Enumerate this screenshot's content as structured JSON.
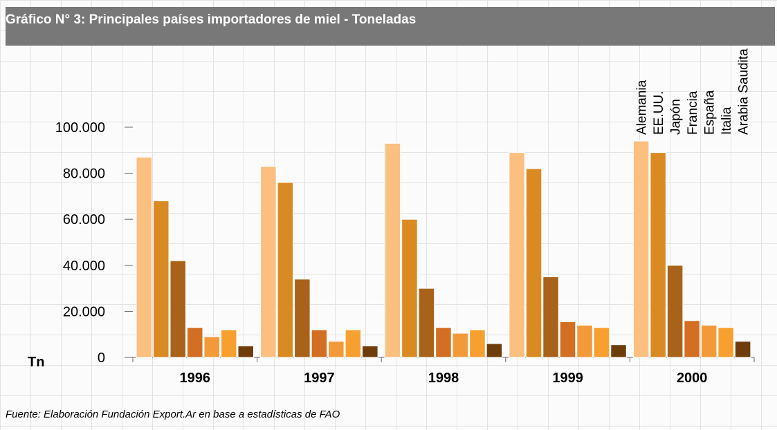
{
  "chart_data": {
    "type": "bar",
    "title": "Gráfico N° 3: Principales países importadores de miel - Toneladas",
    "y_label": "Tn",
    "source": "Fuente: Elaboración Fundación Export.Ar en base a estadísticas de FAO",
    "categories": [
      "1996",
      "1997",
      "1998",
      "1999",
      "2000"
    ],
    "series": [
      {
        "name": "Alemania",
        "color": "#fbbf80",
        "values": [
          87000,
          83000,
          93000,
          89000,
          94000
        ]
      },
      {
        "name": "EE.UU.",
        "color": "#d98a22",
        "values": [
          68000,
          76000,
          60000,
          82000,
          89000
        ]
      },
      {
        "name": "Japón",
        "color": "#a8621a",
        "values": [
          42000,
          34000,
          30000,
          35000,
          40000
        ]
      },
      {
        "name": "Francia",
        "color": "#d26f22",
        "values": [
          13000,
          12000,
          13000,
          15500,
          16000
        ]
      },
      {
        "name": "España",
        "color": "#f29a3a",
        "values": [
          9000,
          7000,
          10500,
          14000,
          14000
        ]
      },
      {
        "name": "Italia",
        "color": "#f7a030",
        "values": [
          12000,
          12000,
          12000,
          13000,
          13000
        ]
      },
      {
        "name": "Arabia Saudita",
        "color": "#6f3d0c",
        "values": [
          5000,
          5000,
          6000,
          5500,
          7000
        ]
      }
    ],
    "ylim": [
      0,
      100000
    ],
    "yticks": [
      0,
      {
        "value": 20000,
        "label": "20.000"
      },
      {
        "value": 40000,
        "label": "40.000"
      },
      {
        "value": 60000,
        "label": "60.000"
      },
      {
        "value": 80000,
        "label": "80.000"
      },
      {
        "value": 100000,
        "label": "100.000"
      }
    ]
  }
}
